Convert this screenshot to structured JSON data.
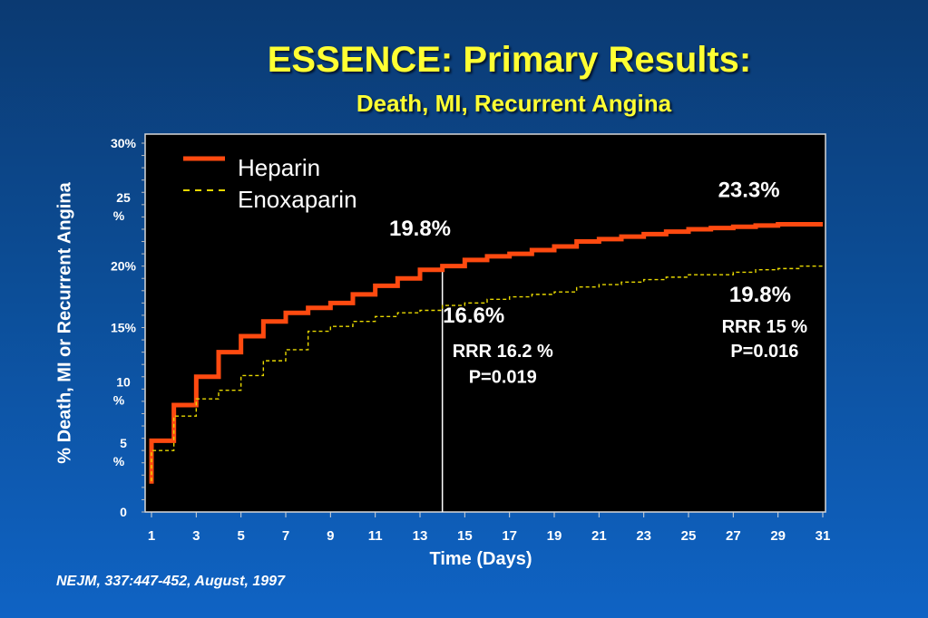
{
  "slide": {
    "title": "ESSENCE:  Primary Results:",
    "subtitle": "Death, MI, Recurrent Angina",
    "citation": "NEJM, 337:447-452, August, 1997"
  },
  "chart_data": {
    "type": "line",
    "step": true,
    "xlabel": "Time (Days)",
    "ylabel": "% Death, MI or Recurrent Angina",
    "xlim": [
      1,
      31
    ],
    "ylim": [
      0,
      30
    ],
    "x_ticks": [
      1,
      3,
      5,
      7,
      9,
      11,
      13,
      15,
      17,
      19,
      21,
      23,
      25,
      27,
      29,
      31
    ],
    "y_ticks": [
      {
        "value": 0,
        "label": "0"
      },
      {
        "value": 5,
        "label": "5\n%"
      },
      {
        "value": 10,
        "label": "10\n%"
      },
      {
        "value": 15,
        "label": "15%"
      },
      {
        "value": 20,
        "label": "20%"
      },
      {
        "value": 25,
        "label": "25\n%"
      },
      {
        "value": 30,
        "label": "30%"
      }
    ],
    "grid": false,
    "legend_position": "top-left",
    "series": [
      {
        "name": "Heparin",
        "color": "#ff4a10",
        "style": "solid",
        "x": [
          1,
          1,
          2,
          3,
          4,
          5,
          6,
          7,
          8,
          9,
          10,
          11,
          12,
          13,
          14,
          15,
          16,
          17,
          18,
          19,
          20,
          21,
          22,
          23,
          24,
          25,
          26,
          27,
          28,
          29,
          30,
          31
        ],
        "y": [
          2.3,
          5.8,
          8.7,
          11.0,
          13.0,
          14.3,
          15.5,
          16.2,
          16.6,
          17.0,
          17.7,
          18.4,
          19.0,
          19.7,
          20.0,
          20.5,
          20.8,
          21.0,
          21.3,
          21.6,
          22.0,
          22.2,
          22.4,
          22.6,
          22.8,
          23.0,
          23.1,
          23.2,
          23.3,
          23.4,
          23.4,
          23.4
        ]
      },
      {
        "name": "Enoxaparin",
        "color": "#e8d800",
        "style": "dashed",
        "x": [
          1,
          1,
          2,
          3,
          4,
          5,
          6,
          7,
          8,
          9,
          10,
          11,
          12,
          13,
          14,
          15,
          16,
          17,
          18,
          19,
          20,
          21,
          22,
          23,
          24,
          25,
          26,
          27,
          28,
          29,
          30,
          31
        ],
        "y": [
          2.5,
          5.0,
          7.8,
          9.2,
          9.9,
          11.1,
          12.3,
          13.2,
          14.7,
          15.1,
          15.5,
          15.9,
          16.2,
          16.4,
          16.8,
          17.0,
          17.3,
          17.5,
          17.7,
          17.9,
          18.3,
          18.5,
          18.7,
          18.9,
          19.1,
          19.3,
          19.3,
          19.5,
          19.7,
          19.8,
          20.0,
          20.1
        ]
      }
    ],
    "reference_line": {
      "x": 14
    },
    "annotations": [
      {
        "text": "19.8%",
        "x": 13.0,
        "y": 22.5,
        "color": "#ffffff",
        "size": 24,
        "bold": true
      },
      {
        "text": "16.6%",
        "x": 15.4,
        "y": 15.4,
        "color": "#ffffff",
        "size": 24,
        "bold": true
      },
      {
        "text": "RRR 16.2 %",
        "x": 16.7,
        "y": 12.6,
        "color": "#ffffff",
        "size": 20,
        "bold": true
      },
      {
        "text": "P=0.019",
        "x": 16.7,
        "y": 10.5,
        "color": "#ffffff",
        "size": 20,
        "bold": true
      },
      {
        "text": "23.3%",
        "x": 27.7,
        "y": 25.6,
        "color": "#ffffff",
        "size": 24,
        "bold": true
      },
      {
        "text": "19.8%",
        "x": 28.2,
        "y": 17.1,
        "color": "#ffffff",
        "size": 24,
        "bold": true
      },
      {
        "text": "RRR 15 %",
        "x": 28.4,
        "y": 14.6,
        "color": "#ffffff",
        "size": 20,
        "bold": true
      },
      {
        "text": "P=0.016",
        "x": 28.4,
        "y": 12.6,
        "color": "#ffffff",
        "size": 20,
        "bold": true
      }
    ]
  }
}
